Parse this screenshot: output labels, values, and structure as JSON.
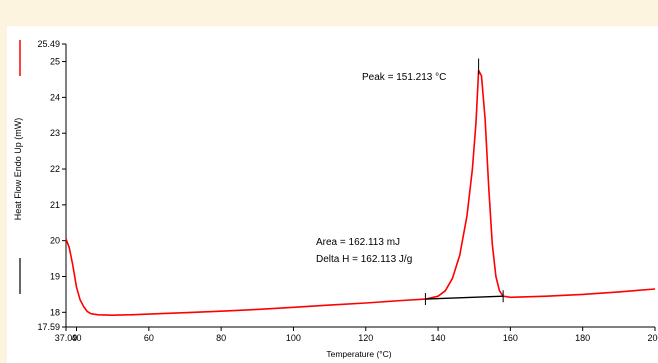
{
  "chart_data": {
    "type": "line",
    "title": "",
    "xlabel": "Temperature (°C)",
    "ylabel": "Heat Flow Endo Up (mW)",
    "xlim": [
      37.09,
      200
    ],
    "ylim": [
      17.59,
      25.49
    ],
    "x_ticks": [
      "37.09",
      "40",
      "60",
      "80",
      "100",
      "120",
      "140",
      "160",
      "180",
      "200"
    ],
    "y_ticks": [
      "17.59",
      "18",
      "19",
      "20",
      "21",
      "22",
      "23",
      "24",
      "25",
      "25.49"
    ],
    "colors": {
      "curve": "#ff0000",
      "baseline": "#000000",
      "legend_curve": "#ff0000",
      "legend_baseline": "#000000"
    },
    "series": [
      {
        "values": [
          [
            37.09,
            20.05
          ],
          [
            38,
            19.8
          ],
          [
            39,
            19.3
          ],
          [
            40,
            18.7
          ],
          [
            41,
            18.35
          ],
          [
            42,
            18.15
          ],
          [
            43,
            18.02
          ],
          [
            44,
            17.96
          ],
          [
            46,
            17.93
          ],
          [
            50,
            17.92
          ],
          [
            55,
            17.93
          ],
          [
            60,
            17.95
          ],
          [
            70,
            17.99
          ],
          [
            80,
            18.03
          ],
          [
            90,
            18.08
          ],
          [
            100,
            18.14
          ],
          [
            110,
            18.2
          ],
          [
            120,
            18.26
          ],
          [
            130,
            18.33
          ],
          [
            136.5,
            18.37
          ],
          [
            140,
            18.45
          ],
          [
            142,
            18.6
          ],
          [
            144,
            18.95
          ],
          [
            146,
            19.6
          ],
          [
            148,
            20.7
          ],
          [
            149.5,
            22.0
          ],
          [
            150.5,
            23.3
          ],
          [
            151.213,
            24.75
          ],
          [
            152,
            24.6
          ],
          [
            153,
            23.4
          ],
          [
            154,
            21.5
          ],
          [
            155,
            19.9
          ],
          [
            156,
            19.0
          ],
          [
            157,
            18.6
          ],
          [
            158,
            18.45
          ],
          [
            160,
            18.42
          ],
          [
            170,
            18.45
          ],
          [
            180,
            18.5
          ],
          [
            190,
            18.57
          ],
          [
            200,
            18.65
          ]
        ]
      }
    ],
    "baseline": {
      "x": [
        136.5,
        158
      ],
      "y": [
        18.37,
        18.45
      ]
    },
    "annotations": {
      "peak": "Peak = 151.213  °C",
      "area": "Area = 162.113 mJ",
      "delta_h": "Delta H = 162.113 J/g"
    },
    "peak_point": {
      "x": 151.213,
      "y": 24.75
    },
    "grid": false,
    "legend": "left-vertical"
  }
}
